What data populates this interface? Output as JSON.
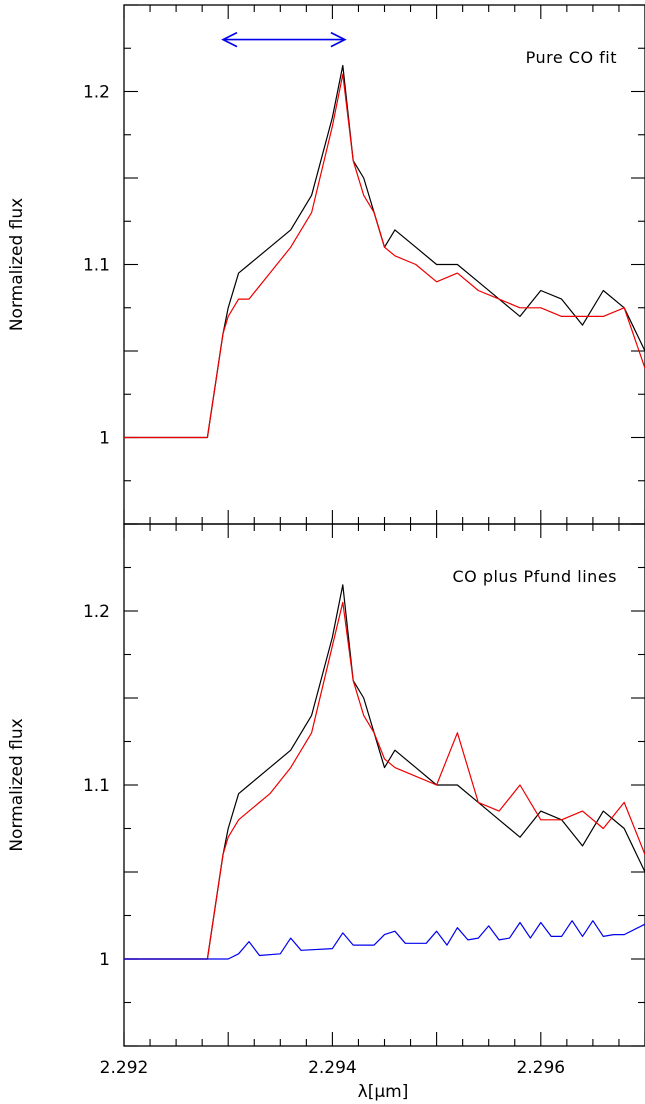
{
  "chart_data": [
    {
      "type": "line",
      "panel": "top",
      "annotation": "Pure CO fit",
      "ylabel": "Normalized flux",
      "xlim": [
        2.292,
        2.297
      ],
      "ylim": [
        0.95,
        1.25
      ],
      "ytick_labels": [
        {
          "value": 1.0,
          "label": "1"
        },
        {
          "value": 1.1,
          "label": "1.1"
        },
        {
          "value": 1.2,
          "label": "1.2"
        }
      ],
      "arrow": {
        "from": 2.29295,
        "to": 2.29412,
        "y": 1.23,
        "color": "#0000ee"
      },
      "series": [
        {
          "color": "#000000",
          "x": [
            2.292,
            2.2922,
            2.2924,
            2.2926,
            2.2928,
            2.29285,
            2.2929,
            2.29295,
            2.293,
            2.2931,
            2.2932,
            2.2934,
            2.2936,
            2.2938,
            2.294,
            2.2941,
            2.2942,
            2.2943,
            2.2944,
            2.2945,
            2.2946,
            2.2948,
            2.295,
            2.2952,
            2.2954,
            2.2956,
            2.2958,
            2.296,
            2.2962,
            2.2964,
            2.2966,
            2.2968,
            2.297
          ],
          "y": [
            1.0,
            1.0,
            1.0,
            1.0,
            1.0,
            1.02,
            1.04,
            1.06,
            1.075,
            1.095,
            1.1,
            1.11,
            1.12,
            1.14,
            1.185,
            1.215,
            1.16,
            1.15,
            1.13,
            1.11,
            1.12,
            1.11,
            1.1,
            1.1,
            1.09,
            1.08,
            1.07,
            1.085,
            1.08,
            1.065,
            1.085,
            1.075,
            1.05
          ]
        },
        {
          "color": "#ee0000",
          "x": [
            2.292,
            2.2928,
            2.29285,
            2.2929,
            2.29295,
            2.293,
            2.2931,
            2.2932,
            2.2934,
            2.2936,
            2.2938,
            2.294,
            2.2941,
            2.2942,
            2.2943,
            2.2944,
            2.2945,
            2.2946,
            2.2948,
            2.295,
            2.2952,
            2.2954,
            2.2956,
            2.2958,
            2.296,
            2.2962,
            2.2964,
            2.2966,
            2.2968,
            2.297
          ],
          "y": [
            1.0,
            1.0,
            1.02,
            1.04,
            1.06,
            1.07,
            1.08,
            1.08,
            1.095,
            1.11,
            1.13,
            1.18,
            1.21,
            1.16,
            1.14,
            1.13,
            1.11,
            1.105,
            1.1,
            1.09,
            1.095,
            1.085,
            1.08,
            1.075,
            1.075,
            1.07,
            1.07,
            1.07,
            1.075,
            1.04
          ]
        }
      ]
    },
    {
      "type": "line",
      "panel": "bottom",
      "annotation": "CO plus Pfund lines",
      "ylabel": "Normalized flux",
      "xlabel": "λ[μm]",
      "xlim": [
        2.292,
        2.297
      ],
      "ylim": [
        0.95,
        1.25
      ],
      "xtick_labels": [
        {
          "value": 2.292,
          "label": "2.292"
        },
        {
          "value": 2.294,
          "label": "2.294"
        },
        {
          "value": 2.296,
          "label": "2.296"
        }
      ],
      "ytick_labels": [
        {
          "value": 1.0,
          "label": "1"
        },
        {
          "value": 1.1,
          "label": "1.1"
        },
        {
          "value": 1.2,
          "label": "1.2"
        }
      ],
      "series": [
        {
          "color": "#000000",
          "x": [
            2.292,
            2.2922,
            2.2924,
            2.2926,
            2.2928,
            2.29285,
            2.2929,
            2.29295,
            2.293,
            2.2931,
            2.2932,
            2.2934,
            2.2936,
            2.2938,
            2.294,
            2.2941,
            2.2942,
            2.2943,
            2.2944,
            2.2945,
            2.2946,
            2.2948,
            2.295,
            2.2952,
            2.2954,
            2.2956,
            2.2958,
            2.296,
            2.2962,
            2.2964,
            2.2966,
            2.2968,
            2.297
          ],
          "y": [
            1.0,
            1.0,
            1.0,
            1.0,
            1.0,
            1.02,
            1.04,
            1.06,
            1.075,
            1.095,
            1.1,
            1.11,
            1.12,
            1.14,
            1.185,
            1.215,
            1.16,
            1.15,
            1.13,
            1.11,
            1.12,
            1.11,
            1.1,
            1.1,
            1.09,
            1.08,
            1.07,
            1.085,
            1.08,
            1.065,
            1.085,
            1.075,
            1.05
          ]
        },
        {
          "color": "#ee0000",
          "x": [
            2.292,
            2.2928,
            2.29285,
            2.2929,
            2.29295,
            2.293,
            2.2931,
            2.2932,
            2.2934,
            2.2936,
            2.2938,
            2.294,
            2.2941,
            2.2942,
            2.2943,
            2.2944,
            2.2945,
            2.2946,
            2.2948,
            2.295,
            2.2952,
            2.2954,
            2.2956,
            2.2958,
            2.296,
            2.2962,
            2.2964,
            2.2966,
            2.2968,
            2.297
          ],
          "y": [
            1.0,
            1.0,
            1.02,
            1.04,
            1.06,
            1.07,
            1.08,
            1.085,
            1.095,
            1.11,
            1.13,
            1.18,
            1.205,
            1.16,
            1.14,
            1.13,
            1.115,
            1.11,
            1.105,
            1.1,
            1.13,
            1.09,
            1.085,
            1.1,
            1.08,
            1.08,
            1.085,
            1.075,
            1.09,
            1.06
          ]
        },
        {
          "color": "#0000ee",
          "x": [
            2.292,
            2.293,
            2.2931,
            2.2932,
            2.2933,
            2.2935,
            2.2936,
            2.2937,
            2.294,
            2.2941,
            2.2942,
            2.2944,
            2.2945,
            2.2946,
            2.2947,
            2.2949,
            2.295,
            2.2951,
            2.2952,
            2.2953,
            2.2954,
            2.2955,
            2.2956,
            2.2957,
            2.2958,
            2.2959,
            2.296,
            2.2961,
            2.2962,
            2.2963,
            2.2964,
            2.2965,
            2.2966,
            2.2967,
            2.2968,
            2.297
          ],
          "y": [
            1.0,
            1.0,
            1.003,
            1.01,
            1.002,
            1.003,
            1.012,
            1.005,
            1.006,
            1.015,
            1.008,
            1.008,
            1.014,
            1.016,
            1.009,
            1.009,
            1.016,
            1.008,
            1.018,
            1.011,
            1.012,
            1.019,
            1.011,
            1.012,
            1.021,
            1.012,
            1.021,
            1.013,
            1.013,
            1.022,
            1.013,
            1.022,
            1.013,
            1.014,
            1.014,
            1.02
          ]
        }
      ]
    }
  ]
}
